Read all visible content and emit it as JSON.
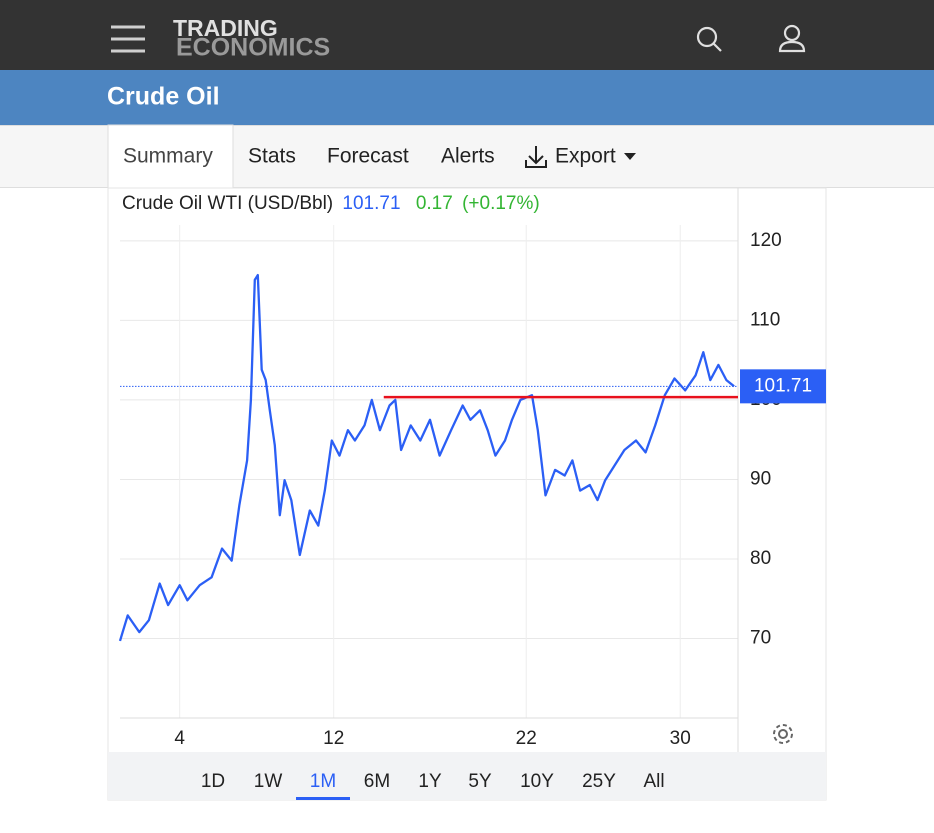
{
  "header": {
    "logo_top": "TRADING",
    "logo_bottom": "ECONOMICS"
  },
  "page_title": "Crude Oil",
  "tabs": [
    "Summary",
    "Stats",
    "Forecast",
    "Alerts",
    "Export"
  ],
  "active_tab": 0,
  "ranges": [
    "1D",
    "1W",
    "1M",
    "6M",
    "1Y",
    "5Y",
    "10Y",
    "25Y",
    "All"
  ],
  "active_range": 2,
  "chart_data": {
    "type": "line",
    "title": "Crude Oil WTI (USD/Bbl)",
    "last_price": 101.71,
    "change": 0.17,
    "change_percent": {
      "value": 0.17,
      "label": "(+0.17%)"
    },
    "x": [
      0.9,
      1.3,
      1.9,
      2.4,
      2.96,
      3.4,
      4.0,
      4.4,
      5.04,
      5.66,
      6.2,
      6.7,
      7.1,
      7.5,
      7.7,
      7.9,
      8.06,
      8.26,
      8.47,
      8.68,
      8.94,
      9.2,
      9.45,
      9.8,
      10.24,
      10.76,
      11.2,
      11.54,
      11.9,
      12.3,
      12.74,
      13.1,
      13.6,
      13.98,
      14.4,
      14.9,
      15.2,
      15.5,
      16.0,
      16.5,
      17.0,
      17.5,
      18.1,
      18.7,
      19.1,
      19.6,
      20.0,
      20.4,
      20.9,
      21.26,
      21.7,
      22.3,
      22.6,
      23.0,
      23.5,
      24.0,
      24.4,
      24.8,
      25.3,
      25.7,
      26.1,
      26.6,
      27.1,
      27.7,
      28.2,
      28.7,
      29.2,
      29.7,
      30.26,
      30.8,
      31.2,
      31.56,
      31.98,
      32.4,
      32.8
    ],
    "series": [
      {
        "name": "Crude Oil WTI",
        "color": "#2b5ff5",
        "values": [
          69.7,
          72.9,
          70.8,
          72.3,
          76.9,
          74.2,
          76.7,
          74.8,
          76.7,
          77.7,
          81.3,
          79.8,
          86.8,
          92.4,
          100.0,
          115.1,
          115.7,
          103.8,
          102.5,
          98.7,
          94.3,
          85.5,
          89.9,
          87.4,
          80.5,
          86.1,
          84.2,
          88.6,
          94.9,
          93.0,
          96.2,
          94.9,
          96.8,
          100.0,
          96.2,
          99.3,
          100.0,
          93.7,
          96.8,
          94.9,
          97.5,
          93.0,
          96.2,
          99.3,
          97.5,
          98.7,
          96.2,
          93.0,
          94.9,
          97.5,
          100.0,
          100.6,
          96.2,
          88.0,
          91.2,
          90.5,
          92.4,
          88.6,
          89.3,
          87.4,
          89.9,
          91.8,
          93.7,
          94.9,
          93.4,
          96.8,
          100.6,
          102.7,
          101.2,
          103.1,
          106.0,
          102.5,
          104.4,
          102.5,
          101.71
        ]
      }
    ],
    "reference_line": {
      "value": 100.35,
      "x": [
        14.6,
        33.0
      ],
      "color": "#e8101c"
    },
    "xlim": [
      0.9,
      33.0
    ],
    "xticks": [
      4,
      12,
      22,
      30
    ],
    "ylim": [
      60,
      122
    ],
    "yticks": [
      70,
      80,
      90,
      100,
      110,
      120
    ],
    "grid": true
  }
}
